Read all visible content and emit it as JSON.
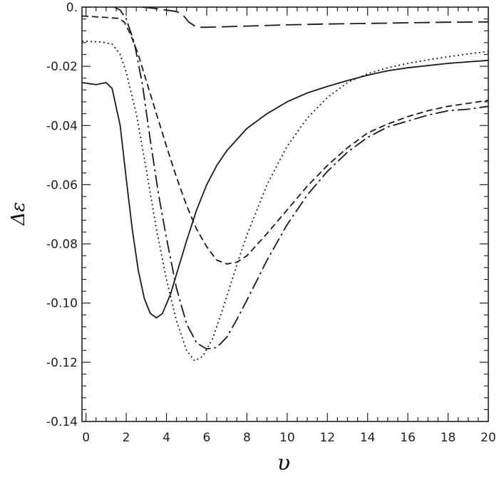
{
  "chart_data": {
    "type": "line",
    "xlabel": "υ",
    "ylabel": "Δε",
    "xlim": [
      -0.2,
      20
    ],
    "ylim": [
      -0.14,
      0.0
    ],
    "x_ticks": [
      0,
      2,
      4,
      6,
      8,
      10,
      12,
      14,
      16,
      18,
      20
    ],
    "x_tick_labels": [
      "0",
      "2",
      "4",
      "6",
      "8",
      "10",
      "12",
      "14",
      "16",
      "18",
      "20"
    ],
    "y_ticks": [
      0.0,
      -0.02,
      -0.04,
      -0.06,
      -0.08,
      -0.1,
      -0.12,
      -0.14
    ],
    "y_tick_labels": [
      "0.",
      "-0.02",
      "-0.04",
      "-0.06",
      "-0.08",
      "-0.10",
      "-0.12",
      "-0.14"
    ],
    "grid": false,
    "legend": "none",
    "series": [
      {
        "style": "solid",
        "points": [
          [
            -0.2,
            -0.0255
          ],
          [
            0.5,
            -0.0262
          ],
          [
            1.0,
            -0.0255
          ],
          [
            1.3,
            -0.0275
          ],
          [
            1.7,
            -0.04
          ],
          [
            2.0,
            -0.058
          ],
          [
            2.3,
            -0.075
          ],
          [
            2.6,
            -0.089
          ],
          [
            2.9,
            -0.0985
          ],
          [
            3.2,
            -0.1035
          ],
          [
            3.5,
            -0.105
          ],
          [
            3.8,
            -0.1035
          ],
          [
            4.2,
            -0.097
          ],
          [
            4.6,
            -0.088
          ],
          [
            5.0,
            -0.079
          ],
          [
            5.5,
            -0.0685
          ],
          [
            6.0,
            -0.06
          ],
          [
            6.5,
            -0.0535
          ],
          [
            7.0,
            -0.0485
          ],
          [
            8.0,
            -0.041
          ],
          [
            9.0,
            -0.036
          ],
          [
            10.0,
            -0.032
          ],
          [
            11.0,
            -0.029
          ],
          [
            12.0,
            -0.0268
          ],
          [
            13.0,
            -0.0248
          ],
          [
            14.0,
            -0.023
          ],
          [
            15.0,
            -0.0215
          ],
          [
            16.0,
            -0.0205
          ],
          [
            18.0,
            -0.019
          ],
          [
            20.0,
            -0.018
          ]
        ]
      },
      {
        "style": "dotted",
        "points": [
          [
            -0.2,
            -0.0115
          ],
          [
            0.8,
            -0.0118
          ],
          [
            1.3,
            -0.0125
          ],
          [
            1.7,
            -0.016
          ],
          [
            2.0,
            -0.022
          ],
          [
            2.5,
            -0.036
          ],
          [
            3.0,
            -0.055
          ],
          [
            3.5,
            -0.075
          ],
          [
            4.0,
            -0.092
          ],
          [
            4.5,
            -0.106
          ],
          [
            5.0,
            -0.116
          ],
          [
            5.4,
            -0.1195
          ],
          [
            5.8,
            -0.118
          ],
          [
            6.3,
            -0.112
          ],
          [
            6.8,
            -0.102
          ],
          [
            7.5,
            -0.087
          ],
          [
            8.0,
            -0.077
          ],
          [
            9.0,
            -0.06
          ],
          [
            10.0,
            -0.047
          ],
          [
            11.0,
            -0.0375
          ],
          [
            12.0,
            -0.0305
          ],
          [
            13.0,
            -0.0255
          ],
          [
            14.0,
            -0.0225
          ],
          [
            15.0,
            -0.0205
          ],
          [
            16.0,
            -0.019
          ],
          [
            17.0,
            -0.0178
          ],
          [
            18.0,
            -0.0168
          ],
          [
            19.0,
            -0.0158
          ],
          [
            20.0,
            -0.015
          ]
        ]
      },
      {
        "style": "short-dash",
        "points": [
          [
            -0.2,
            -0.003
          ],
          [
            1.0,
            -0.0035
          ],
          [
            1.6,
            -0.0038
          ],
          [
            1.9,
            -0.005
          ],
          [
            2.2,
            -0.009
          ],
          [
            2.6,
            -0.016
          ],
          [
            3.0,
            -0.025
          ],
          [
            3.5,
            -0.036
          ],
          [
            4.0,
            -0.047
          ],
          [
            4.5,
            -0.0575
          ],
          [
            5.0,
            -0.067
          ],
          [
            5.5,
            -0.075
          ],
          [
            6.0,
            -0.081
          ],
          [
            6.5,
            -0.0855
          ],
          [
            7.0,
            -0.0868
          ],
          [
            7.5,
            -0.0862
          ],
          [
            8.0,
            -0.084
          ],
          [
            9.0,
            -0.0765
          ],
          [
            10.0,
            -0.0685
          ],
          [
            11.0,
            -0.0605
          ],
          [
            12.0,
            -0.0535
          ],
          [
            13.0,
            -0.0475
          ],
          [
            14.0,
            -0.0425
          ],
          [
            15.0,
            -0.0395
          ],
          [
            16.0,
            -0.037
          ],
          [
            17.0,
            -0.035
          ],
          [
            18.0,
            -0.0335
          ],
          [
            19.0,
            -0.0325
          ],
          [
            20.0,
            -0.0315
          ]
        ]
      },
      {
        "style": "long-dash",
        "points": [
          [
            2.8,
            0.0
          ],
          [
            3.5,
            -0.0005
          ],
          [
            4.0,
            -0.001
          ],
          [
            4.5,
            -0.0015
          ],
          [
            4.8,
            -0.0025
          ],
          [
            5.1,
            -0.005
          ],
          [
            5.5,
            -0.0068
          ],
          [
            6.0,
            -0.0068
          ],
          [
            8.0,
            -0.0064
          ],
          [
            10.0,
            -0.006
          ],
          [
            12.0,
            -0.0057
          ],
          [
            14.0,
            -0.0055
          ],
          [
            16.0,
            -0.0053
          ],
          [
            18.0,
            -0.0051
          ],
          [
            20.0,
            -0.005
          ]
        ]
      },
      {
        "style": "dash-dot",
        "points": [
          [
            1.4,
            0.0
          ],
          [
            1.7,
            -0.001
          ],
          [
            2.0,
            -0.004
          ],
          [
            2.4,
            -0.012
          ],
          [
            2.8,
            -0.026
          ],
          [
            3.2,
            -0.045
          ],
          [
            3.6,
            -0.063
          ],
          [
            4.0,
            -0.078
          ],
          [
            4.5,
            -0.095
          ],
          [
            5.0,
            -0.107
          ],
          [
            5.5,
            -0.1135
          ],
          [
            6.0,
            -0.1155
          ],
          [
            6.5,
            -0.115
          ],
          [
            7.0,
            -0.1115
          ],
          [
            7.5,
            -0.1055
          ],
          [
            8.0,
            -0.099
          ],
          [
            9.0,
            -0.0855
          ],
          [
            10.0,
            -0.0735
          ],
          [
            11.0,
            -0.0635
          ],
          [
            12.0,
            -0.0555
          ],
          [
            13.0,
            -0.049
          ],
          [
            14.0,
            -0.044
          ],
          [
            15.0,
            -0.0405
          ],
          [
            16.0,
            -0.0385
          ],
          [
            17.0,
            -0.0365
          ],
          [
            18.0,
            -0.035
          ],
          [
            19.0,
            -0.0345
          ],
          [
            20.0,
            -0.0335
          ]
        ]
      }
    ]
  }
}
